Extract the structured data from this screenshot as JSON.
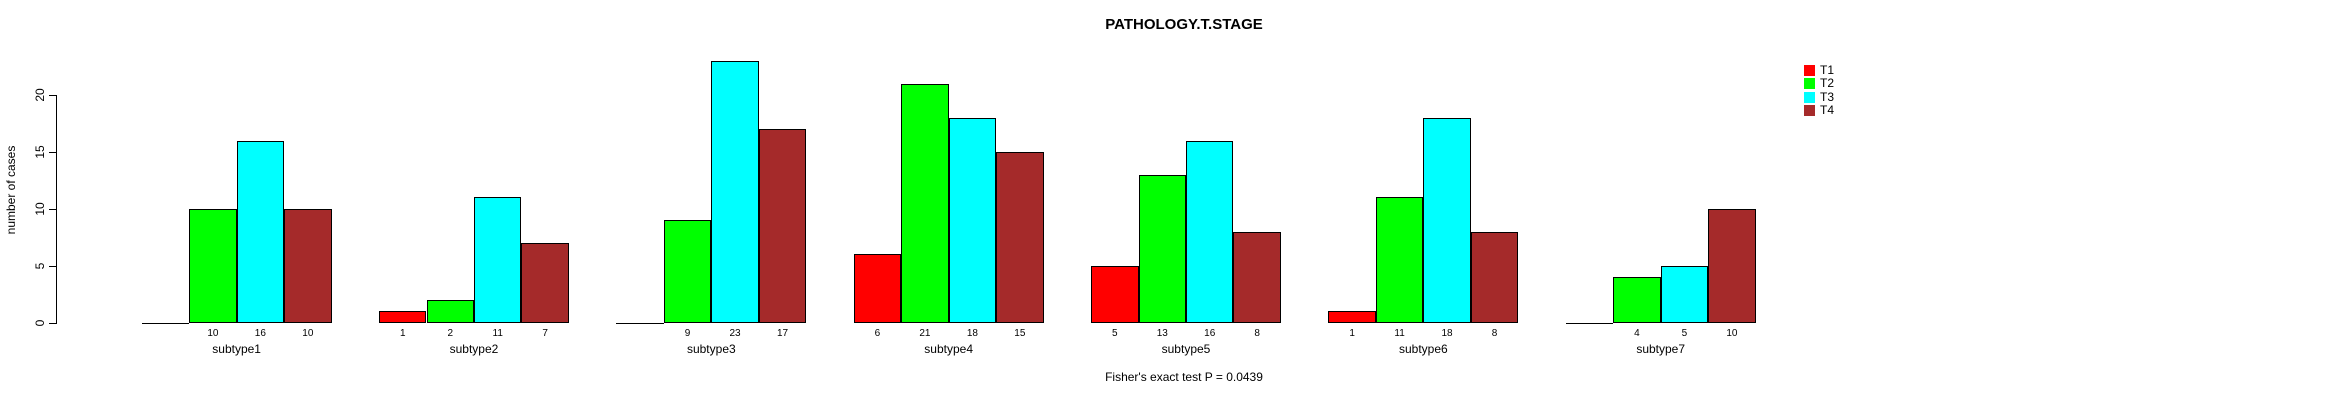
{
  "chart_data": {
    "type": "bar",
    "title": "PATHOLOGY.T.STAGE",
    "subtitle": "Fisher's exact test P = 0.0439",
    "xlabel": "",
    "ylabel": "number of cases",
    "categories": [
      "subtype1",
      "subtype2",
      "subtype3",
      "subtype4",
      "subtype5",
      "subtype6",
      "subtype7"
    ],
    "series": [
      {
        "name": "T1",
        "color": "#FF0000",
        "values": [
          0,
          1,
          0,
          6,
          5,
          1,
          0
        ]
      },
      {
        "name": "T2",
        "color": "#00FF00",
        "values": [
          10,
          2,
          9,
          21,
          13,
          11,
          4
        ]
      },
      {
        "name": "T3",
        "color": "#00FFFF",
        "values": [
          16,
          11,
          23,
          18,
          16,
          18,
          5
        ]
      },
      {
        "name": "T4",
        "color": "#A52A2A",
        "values": [
          10,
          7,
          17,
          15,
          8,
          8,
          10
        ]
      }
    ],
    "bar_value_labels_shown": true,
    "zero_values_unlabeled": true,
    "yticks": [
      0,
      5,
      10,
      15,
      20
    ],
    "ylim": [
      0,
      23
    ],
    "grid": false,
    "legend_position": "top-right",
    "legend_entries": [
      "T1",
      "T2",
      "T3",
      "T4"
    ]
  }
}
